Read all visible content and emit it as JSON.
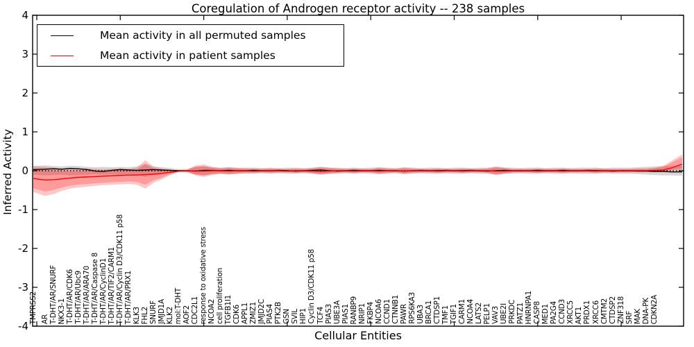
{
  "title": "Coregulation of Androgen receptor activity -- 238 samples",
  "axes": {
    "xlabel": "Cellular Entities",
    "ylabel": "Inferred Activity",
    "ytick_labels": [
      "4",
      "3",
      "2",
      "1",
      "0",
      "-1",
      "-2",
      "-3",
      "-4"
    ]
  },
  "legend": [
    {
      "label": "Mean activity in all permuted samples",
      "color": "#000000"
    },
    {
      "label": "Mean activity in patient samples",
      "color": "#ff0000"
    }
  ],
  "colors": {
    "patient_line": "#ff0000",
    "permuted_line": "#000000",
    "patient_band": "#ff0000",
    "permuted_band": "#999999",
    "zero_line": "#000000",
    "frame": "#000000",
    "background": "#ffffff"
  },
  "chart_data": {
    "type": "line",
    "title": "Coregulation of Androgen receptor activity -- 238 samples",
    "xlabel": "Cellular Entities",
    "ylabel": "Inferred Activity",
    "ylim": [
      -4,
      4
    ],
    "yticks": [
      4,
      3,
      2,
      1,
      0,
      -1,
      -2,
      -3,
      -4
    ],
    "grid": false,
    "zero_line": "dotted",
    "legend_position": "upper left",
    "n_points": 78,
    "n_labeled_points": 75,
    "categories": [
      "TMPRSS2",
      "AR",
      "T-DHT/AR/SNURF",
      "NKX3-1",
      "T-DHT/AR/CDK6",
      "T-DHT/AR/Ubc9",
      "T-DHT/AR/ARA70",
      "T-DHT/AR/Caspase 8",
      "T-DHT/AR/CyclinD1",
      "T-DHT/AR/TIF2/CARM1",
      "T-DHT/AR/Cyclin D3/CDK11 p58",
      "T-DHT/AR/PRX1",
      "KLK3",
      "FHL2",
      "SNURF",
      "JMJD1A",
      "KLK2",
      "mol:T-DHT",
      "AOF2",
      "CDC2L1",
      "response to oxidative stress",
      "NCOA2",
      "cell proliferation",
      "TGFB1I1",
      "CDK6",
      "APPL1",
      "ZMIZ1",
      "JMJD2C",
      "PIAS4",
      "PTK2B",
      "GSN",
      "SVIL",
      "HIP1",
      "Cyclin D3/CDK11 p58",
      "TCF4",
      "PIAS3",
      "UBE3A",
      "PIAS1",
      "RANBP9",
      "NRIP1",
      "FKBP4",
      "NCOA6",
      "CCND1",
      "CTNNB1",
      "PAWR",
      "RPS6KA3",
      "UBA3",
      "BRCA1",
      "CTDSP1",
      "TMF1",
      "TGIF1",
      "CARM1",
      "NCOA4",
      "LATS2",
      "PELP1",
      "VAV3",
      "UBE2I",
      "PRKDC",
      "PATZ1",
      "HNRNPA1",
      "CASP8",
      "MED1",
      "PA2G4",
      "CCND3",
      "XRCC5",
      "AKT1",
      "PRDX1",
      "XRCC6",
      "CMTM2",
      "CTDSP2",
      "ZNF318",
      "SRF",
      "MAK",
      "DNA-PK",
      "CDKN2A"
    ],
    "series": [
      {
        "name": "Mean activity in all permuted samples",
        "color": "#000000",
        "values": [
          0.03,
          0.04,
          0.05,
          0.04,
          0.06,
          0.05,
          0.03,
          -0.01,
          -0.02,
          0.01,
          0.03,
          0.02,
          0.01,
          0.02,
          0.03,
          0.02,
          0.01,
          0,
          0,
          -0.01,
          0.01,
          0.01,
          0,
          0.01,
          0,
          0,
          0.01,
          0,
          0,
          0.01,
          0,
          -0.01,
          0,
          0.01,
          0.02,
          0,
          -0.01,
          0,
          0.01,
          0,
          0,
          0.01,
          0,
          0,
          -0.01,
          0,
          0.01,
          0,
          0,
          0.01,
          0,
          0,
          0.01,
          0,
          -0.01,
          0,
          0.01,
          0,
          0,
          0,
          0.01,
          0,
          0,
          0.01,
          0,
          0,
          0.01,
          0,
          0,
          -0.01,
          0,
          0,
          -0.01,
          -0.01,
          -0.02,
          -0.02,
          -0.03,
          -0.03
        ]
      },
      {
        "name": "Mean activity in patient samples",
        "color": "#ff0000",
        "values": [
          -0.2,
          -0.24,
          -0.23,
          -0.21,
          -0.19,
          -0.17,
          -0.16,
          -0.15,
          -0.14,
          -0.13,
          -0.12,
          -0.11,
          -0.11,
          -0.1,
          -0.09,
          -0.07,
          -0.04,
          -0.01,
          0,
          -0.01,
          -0.01,
          0,
          0,
          -0.01,
          0,
          0,
          -0.01,
          0,
          0,
          0,
          -0.01,
          0,
          0,
          -0.01,
          -0.02,
          -0.01,
          0,
          0,
          -0.01,
          0,
          0,
          -0.01,
          0,
          0,
          -0.01,
          0,
          0,
          0,
          -0.01,
          0,
          0,
          -0.01,
          0,
          0,
          0,
          -0.01,
          -0.01,
          0,
          0,
          0,
          -0.01,
          0,
          0,
          -0.01,
          0,
          0,
          0,
          -0.01,
          0,
          0,
          0,
          0,
          0,
          0,
          0.01,
          0.02,
          0.07,
          0.17
        ]
      }
    ],
    "bands": [
      {
        "name": "permuted-samples-band",
        "color": "#999999",
        "opacity": 0.38,
        "lower": [
          -0.1,
          -0.12,
          -0.11,
          -0.1,
          -0.12,
          -0.11,
          -0.1,
          -0.09,
          -0.1,
          -0.09,
          -0.1,
          -0.09,
          -0.1,
          -0.16,
          -0.1,
          -0.09,
          -0.07,
          -0.04,
          -0.05,
          -0.1,
          -0.12,
          -0.09,
          -0.08,
          -0.09,
          -0.08,
          -0.08,
          -0.08,
          -0.07,
          -0.08,
          -0.07,
          -0.08,
          -0.08,
          -0.07,
          -0.08,
          -0.1,
          -0.08,
          -0.08,
          -0.07,
          -0.08,
          -0.07,
          -0.08,
          -0.09,
          -0.08,
          -0.07,
          -0.09,
          -0.08,
          -0.07,
          -0.08,
          -0.08,
          -0.07,
          -0.08,
          -0.08,
          -0.07,
          -0.08,
          -0.08,
          -0.1,
          -0.08,
          -0.08,
          -0.07,
          -0.08,
          -0.08,
          -0.07,
          -0.08,
          -0.08,
          -0.07,
          -0.08,
          -0.08,
          -0.08,
          -0.07,
          -0.08,
          -0.08,
          -0.08,
          -0.09,
          -0.1,
          -0.11,
          -0.12,
          -0.12,
          -0.13
        ],
        "upper": [
          0.12,
          0.14,
          0.12,
          0.11,
          0.13,
          0.12,
          0.1,
          0.09,
          0.1,
          0.09,
          0.1,
          0.09,
          0.11,
          0.18,
          0.11,
          0.09,
          0.07,
          0.04,
          0.05,
          0.1,
          0.12,
          0.09,
          0.08,
          0.09,
          0.08,
          0.08,
          0.08,
          0.07,
          0.08,
          0.07,
          0.08,
          0.08,
          0.07,
          0.08,
          0.1,
          0.08,
          0.08,
          0.07,
          0.08,
          0.07,
          0.08,
          0.09,
          0.08,
          0.07,
          0.09,
          0.08,
          0.07,
          0.08,
          0.08,
          0.07,
          0.08,
          0.08,
          0.07,
          0.08,
          0.08,
          0.1,
          0.08,
          0.08,
          0.07,
          0.08,
          0.08,
          0.07,
          0.08,
          0.08,
          0.07,
          0.08,
          0.08,
          0.08,
          0.07,
          0.08,
          0.08,
          0.08,
          0.09,
          0.1,
          0.11,
          0.12,
          0.12,
          0.13
        ]
      },
      {
        "name": "patient-samples-band",
        "color": "#ff0000",
        "opacity": 0.22,
        "lower": [
          -0.55,
          -0.65,
          -0.6,
          -0.52,
          -0.46,
          -0.43,
          -0.41,
          -0.39,
          -0.37,
          -0.36,
          -0.35,
          -0.34,
          -0.36,
          -0.46,
          -0.31,
          -0.22,
          -0.11,
          -0.03,
          -0.03,
          -0.12,
          -0.16,
          -0.11,
          -0.08,
          -0.1,
          -0.08,
          -0.06,
          -0.06,
          -0.05,
          -0.06,
          -0.05,
          -0.05,
          -0.06,
          -0.05,
          -0.07,
          -0.1,
          -0.08,
          -0.06,
          -0.05,
          -0.06,
          -0.05,
          -0.05,
          -0.08,
          -0.06,
          -0.05,
          -0.08,
          -0.06,
          -0.05,
          -0.05,
          -0.06,
          -0.05,
          -0.05,
          -0.06,
          -0.05,
          -0.05,
          -0.06,
          -0.11,
          -0.08,
          -0.05,
          -0.05,
          -0.05,
          -0.06,
          -0.05,
          -0.05,
          -0.06,
          -0.05,
          -0.05,
          -0.05,
          -0.06,
          -0.05,
          -0.05,
          -0.05,
          -0.05,
          -0.04,
          -0.04,
          -0.04,
          -0.03,
          0,
          0.02
        ],
        "upper": [
          0.12,
          0.1,
          0.08,
          0.06,
          0.05,
          0.05,
          0.06,
          0.05,
          0.04,
          0.05,
          0.06,
          0.05,
          0.08,
          0.27,
          0.1,
          0.06,
          0.03,
          0.01,
          0.02,
          0.14,
          0.16,
          0.1,
          0.07,
          0.09,
          0.07,
          0.06,
          0.06,
          0.05,
          0.06,
          0.05,
          0.05,
          0.06,
          0.05,
          0.07,
          0.1,
          0.08,
          0.06,
          0.05,
          0.06,
          0.05,
          0.05,
          0.08,
          0.06,
          0.05,
          0.08,
          0.06,
          0.05,
          0.05,
          0.06,
          0.05,
          0.05,
          0.06,
          0.05,
          0.05,
          0.06,
          0.11,
          0.08,
          0.05,
          0.05,
          0.05,
          0.06,
          0.05,
          0.05,
          0.06,
          0.05,
          0.05,
          0.05,
          0.06,
          0.05,
          0.05,
          0.05,
          0.05,
          0.06,
          0.06,
          0.08,
          0.12,
          0.25,
          0.42
        ]
      }
    ]
  }
}
